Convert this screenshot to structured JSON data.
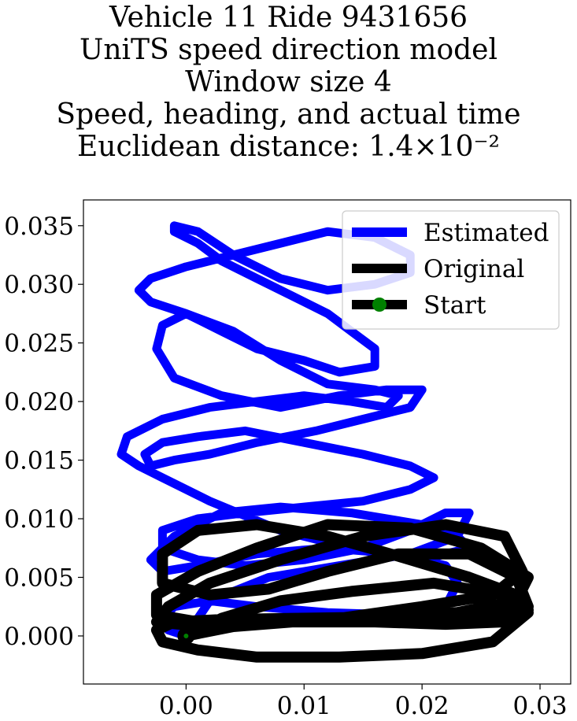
{
  "chart_data": {
    "type": "line",
    "title_lines": [
      "Vehicle 11 Ride 9431656",
      "UniTS speed direction model",
      "Window size 4",
      "Speed, heading, and actual time",
      "Euclidean distance: 1.4×10⁻²"
    ],
    "xlabel": "",
    "ylabel": "",
    "xlim": [
      -0.0087,
      0.0326
    ],
    "ylim": [
      -0.0041,
      0.0372
    ],
    "x_ticks": [
      "0.00",
      "0.01",
      "0.02",
      "0.03"
    ],
    "x_tick_values": [
      0.0,
      0.01,
      0.02,
      0.03
    ],
    "y_ticks": [
      "0.000",
      "0.005",
      "0.010",
      "0.015",
      "0.020",
      "0.025",
      "0.030",
      "0.035"
    ],
    "y_tick_values": [
      0.0,
      0.005,
      0.01,
      0.015,
      0.02,
      0.025,
      0.03,
      0.035
    ],
    "grid": false,
    "legend_position": "top-right",
    "series": [
      {
        "name": "Estimated",
        "color": "#0000ff",
        "x": [
          0.0,
          -0.0015,
          -0.002,
          -0.001,
          0.002,
          0.006,
          0.012,
          0.018,
          0.022,
          0.023,
          0.022,
          0.018,
          0.012,
          0.006,
          0.001,
          -0.002,
          -0.003,
          -0.001,
          0.003,
          0.008,
          0.014,
          0.02,
          0.023,
          0.024,
          0.02,
          0.014,
          0.008,
          0.002,
          -0.002,
          -0.004,
          -0.0055,
          -0.005,
          -0.002,
          0.002,
          0.006,
          0.01,
          0.014,
          0.017,
          0.018,
          0.016,
          0.012,
          0.008,
          0.004,
          0.0,
          -0.003,
          -0.004,
          -0.003,
          0.0,
          0.004,
          0.008,
          0.012,
          0.016,
          0.019,
          0.019,
          0.016,
          0.012,
          0.008,
          0.004,
          0.001,
          -0.001,
          -0.001,
          0.001,
          0.003,
          0.006,
          0.009,
          0.012,
          0.014,
          0.016,
          0.016,
          0.013,
          0.01,
          0.006,
          0.003,
          0.0,
          -0.002,
          -0.0025,
          -0.001,
          0.003,
          0.008,
          0.013,
          0.017,
          0.02,
          0.019,
          0.015,
          0.011,
          0.006,
          0.002,
          -0.001,
          -0.003,
          -0.0035,
          -0.002,
          0.001,
          0.005,
          0.01,
          0.015,
          0.019,
          0.021,
          0.019,
          0.015,
          0.01,
          0.005,
          0.001,
          -0.002,
          -0.002,
          0.001,
          0.005,
          0.01,
          0.015,
          0.019,
          0.022,
          0.024,
          0.023,
          0.019,
          0.013,
          0.007,
          0.002,
          0.0
        ],
        "y": [
          0.0,
          0.0005,
          0.0015,
          0.0025,
          0.003,
          0.0025,
          0.002,
          0.0018,
          0.0025,
          0.0045,
          0.006,
          0.007,
          0.0075,
          0.007,
          0.006,
          0.0055,
          0.0065,
          0.0085,
          0.0105,
          0.011,
          0.0105,
          0.0095,
          0.0085,
          0.0075,
          0.0065,
          0.0075,
          0.009,
          0.0115,
          0.0135,
          0.0145,
          0.0155,
          0.017,
          0.0185,
          0.0195,
          0.02,
          0.0205,
          0.02,
          0.0195,
          0.0205,
          0.021,
          0.0215,
          0.0235,
          0.026,
          0.0275,
          0.0285,
          0.0295,
          0.0305,
          0.0315,
          0.0325,
          0.0335,
          0.0345,
          0.034,
          0.0325,
          0.031,
          0.03,
          0.0295,
          0.0305,
          0.0325,
          0.0345,
          0.035,
          0.0345,
          0.0335,
          0.032,
          0.0305,
          0.029,
          0.0275,
          0.026,
          0.0245,
          0.023,
          0.0225,
          0.0235,
          0.0245,
          0.026,
          0.0275,
          0.0265,
          0.0245,
          0.022,
          0.0205,
          0.0195,
          0.0205,
          0.021,
          0.021,
          0.0195,
          0.0185,
          0.0175,
          0.0165,
          0.0155,
          0.015,
          0.0145,
          0.0155,
          0.0165,
          0.017,
          0.0175,
          0.0165,
          0.0155,
          0.0145,
          0.0135,
          0.0125,
          0.0115,
          0.011,
          0.0105,
          0.01,
          0.009,
          0.0075,
          0.0065,
          0.006,
          0.0065,
          0.0075,
          0.009,
          0.0105,
          0.0105,
          0.0085,
          0.007,
          0.006,
          0.005,
          0.003,
          0.0
        ]
      },
      {
        "name": "Original",
        "color": "#000000",
        "x": [
          0.0,
          0.004,
          0.009,
          0.015,
          0.021,
          0.026,
          0.029,
          0.028,
          0.024,
          0.018,
          0.012,
          0.006,
          0.001,
          -0.002,
          -0.002,
          0.002,
          0.007,
          0.012,
          0.018,
          0.024,
          0.028,
          0.029,
          0.027,
          0.022,
          0.016,
          0.01,
          0.004,
          -0.0005,
          -0.0025,
          -0.0015,
          0.002,
          0.008,
          0.015,
          0.022,
          0.027,
          0.0285,
          0.026,
          0.02,
          0.013,
          0.007,
          0.001,
          -0.0025,
          -0.0025,
          0.001,
          0.006,
          0.012,
          0.019,
          0.025,
          0.029,
          0.028,
          0.023,
          0.016,
          0.009,
          0.003,
          -0.001,
          -0.0025,
          -0.002,
          0.001,
          0.006,
          0.013,
          0.02,
          0.026,
          0.029,
          0.027,
          0.021,
          0.014,
          0.008,
          0.003,
          0.0
        ],
        "y": [
          0.0,
          0.0008,
          0.0012,
          0.0015,
          0.0016,
          0.0018,
          0.0022,
          0.0035,
          0.005,
          0.0068,
          0.0085,
          0.0095,
          0.009,
          0.007,
          0.0045,
          0.0035,
          0.004,
          0.0055,
          0.007,
          0.007,
          0.005,
          0.0025,
          0.0012,
          0.001,
          0.0012,
          0.0012,
          0.0012,
          0.001,
          0.0012,
          0.0025,
          0.0045,
          0.0065,
          0.0085,
          0.0095,
          0.0085,
          0.0055,
          0.0035,
          0.0025,
          0.0015,
          0.0012,
          0.0012,
          0.0018,
          0.0035,
          0.0055,
          0.0075,
          0.0095,
          0.0092,
          0.0075,
          0.005,
          0.003,
          0.002,
          0.0016,
          0.0015,
          0.0014,
          0.0012,
          0.0005,
          -0.0005,
          -0.0012,
          -0.0018,
          -0.0018,
          -0.0015,
          -0.0005,
          0.002,
          0.0035,
          0.0045,
          0.0038,
          0.003,
          0.0015,
          0.0
        ]
      }
    ],
    "start_point": {
      "name": "Start",
      "x": 0.0,
      "y": 0.0,
      "marker_color": "#008000",
      "edge_color": "#000000"
    }
  }
}
